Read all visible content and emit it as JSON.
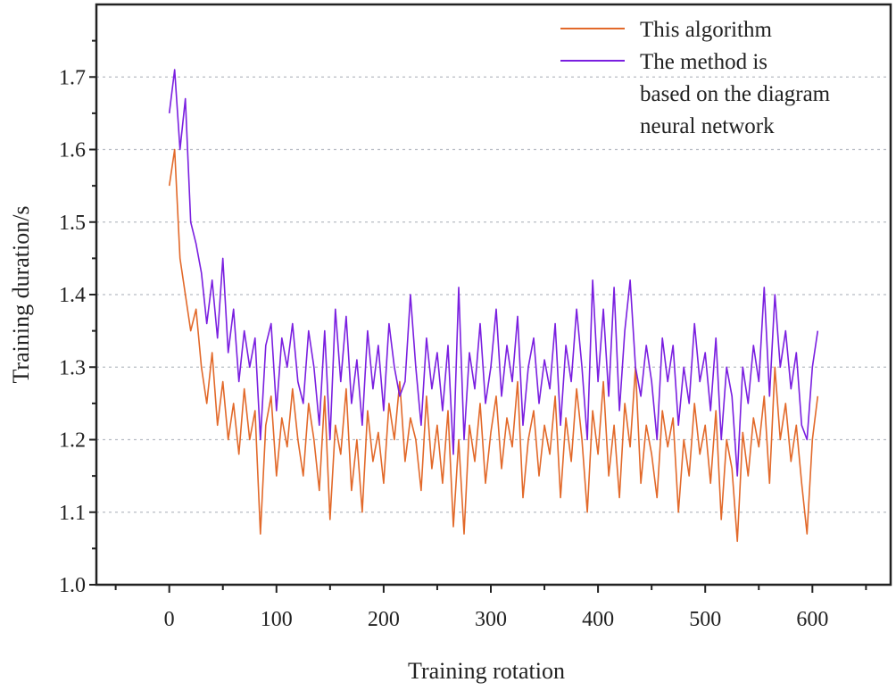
{
  "chart_data": {
    "type": "line",
    "title": "",
    "xlabel": "Training rotation",
    "ylabel": "Training duration/s",
    "xlim": [
      -68,
      673
    ],
    "ylim": [
      1.0,
      1.8
    ],
    "xticks": [
      "0",
      "100",
      "200",
      "300",
      "400",
      "500",
      "600"
    ],
    "yticks": [
      "1.0",
      "1.1",
      "1.2",
      "1.3",
      "1.4",
      "1.5",
      "1.6",
      "1.7"
    ],
    "grid": "horizontal dashed",
    "legend_placement": "top-right",
    "x": [
      0,
      5,
      10,
      15,
      20,
      25,
      30,
      35,
      40,
      45,
      50,
      55,
      60,
      65,
      70,
      75,
      80,
      85,
      90,
      95,
      100,
      105,
      110,
      115,
      120,
      125,
      130,
      135,
      140,
      145,
      150,
      155,
      160,
      165,
      170,
      175,
      180,
      185,
      190,
      195,
      200,
      205,
      210,
      215,
      220,
      225,
      230,
      235,
      240,
      245,
      250,
      255,
      260,
      265,
      270,
      275,
      280,
      285,
      290,
      295,
      300,
      305,
      310,
      315,
      320,
      325,
      330,
      335,
      340,
      345,
      350,
      355,
      360,
      365,
      370,
      375,
      380,
      385,
      390,
      395,
      400,
      405,
      410,
      415,
      420,
      425,
      430,
      435,
      440,
      445,
      450,
      455,
      460,
      465,
      470,
      475,
      480,
      485,
      490,
      495,
      500,
      505,
      510,
      515,
      520,
      525,
      530,
      535,
      540,
      545,
      550,
      555,
      560,
      565,
      570,
      575,
      580,
      585,
      590,
      595,
      600,
      605
    ],
    "series": [
      {
        "name": "This algorithm",
        "color": "#e2692a",
        "values": [
          1.55,
          1.6,
          1.45,
          1.4,
          1.35,
          1.38,
          1.3,
          1.25,
          1.32,
          1.22,
          1.28,
          1.2,
          1.25,
          1.18,
          1.27,
          1.2,
          1.24,
          1.07,
          1.22,
          1.26,
          1.15,
          1.23,
          1.19,
          1.27,
          1.2,
          1.15,
          1.25,
          1.2,
          1.13,
          1.26,
          1.09,
          1.22,
          1.18,
          1.27,
          1.13,
          1.2,
          1.1,
          1.24,
          1.17,
          1.21,
          1.14,
          1.25,
          1.2,
          1.28,
          1.17,
          1.23,
          1.2,
          1.13,
          1.26,
          1.16,
          1.22,
          1.14,
          1.24,
          1.08,
          1.2,
          1.07,
          1.22,
          1.17,
          1.25,
          1.14,
          1.21,
          1.26,
          1.16,
          1.23,
          1.19,
          1.28,
          1.12,
          1.2,
          1.24,
          1.15,
          1.22,
          1.18,
          1.26,
          1.12,
          1.23,
          1.17,
          1.27,
          1.2,
          1.1,
          1.24,
          1.18,
          1.28,
          1.15,
          1.22,
          1.12,
          1.25,
          1.19,
          1.3,
          1.14,
          1.22,
          1.18,
          1.12,
          1.24,
          1.19,
          1.23,
          1.1,
          1.2,
          1.15,
          1.25,
          1.18,
          1.22,
          1.14,
          1.24,
          1.09,
          1.2,
          1.16,
          1.06,
          1.21,
          1.15,
          1.23,
          1.19,
          1.26,
          1.14,
          1.3,
          1.2,
          1.25,
          1.17,
          1.22,
          1.14,
          1.07,
          1.2,
          1.26
        ]
      },
      {
        "name": "The method is based on the diagram neural network",
        "color": "#7a1fe0",
        "values": [
          1.65,
          1.71,
          1.6,
          1.67,
          1.5,
          1.47,
          1.43,
          1.36,
          1.42,
          1.34,
          1.45,
          1.32,
          1.38,
          1.28,
          1.35,
          1.3,
          1.34,
          1.2,
          1.33,
          1.36,
          1.24,
          1.34,
          1.3,
          1.36,
          1.28,
          1.25,
          1.35,
          1.3,
          1.22,
          1.35,
          1.2,
          1.38,
          1.28,
          1.37,
          1.25,
          1.31,
          1.22,
          1.35,
          1.27,
          1.33,
          1.24,
          1.36,
          1.3,
          1.26,
          1.28,
          1.4,
          1.3,
          1.22,
          1.34,
          1.27,
          1.32,
          1.24,
          1.33,
          1.18,
          1.41,
          1.2,
          1.32,
          1.27,
          1.36,
          1.25,
          1.3,
          1.38,
          1.26,
          1.33,
          1.28,
          1.37,
          1.22,
          1.3,
          1.34,
          1.25,
          1.31,
          1.27,
          1.36,
          1.22,
          1.33,
          1.28,
          1.38,
          1.3,
          1.2,
          1.42,
          1.28,
          1.38,
          1.26,
          1.41,
          1.24,
          1.35,
          1.42,
          1.3,
          1.26,
          1.33,
          1.28,
          1.2,
          1.34,
          1.28,
          1.33,
          1.22,
          1.3,
          1.25,
          1.36,
          1.28,
          1.32,
          1.24,
          1.34,
          1.2,
          1.3,
          1.26,
          1.15,
          1.3,
          1.25,
          1.33,
          1.28,
          1.41,
          1.26,
          1.4,
          1.3,
          1.35,
          1.27,
          1.32,
          1.22,
          1.2,
          1.3,
          1.35
        ]
      }
    ],
    "legend": {
      "entries": [
        {
          "lines": [
            "This algorithm"
          ]
        },
        {
          "lines": [
            "The method is",
            "based on the diagram",
            "neural network"
          ]
        }
      ]
    }
  }
}
